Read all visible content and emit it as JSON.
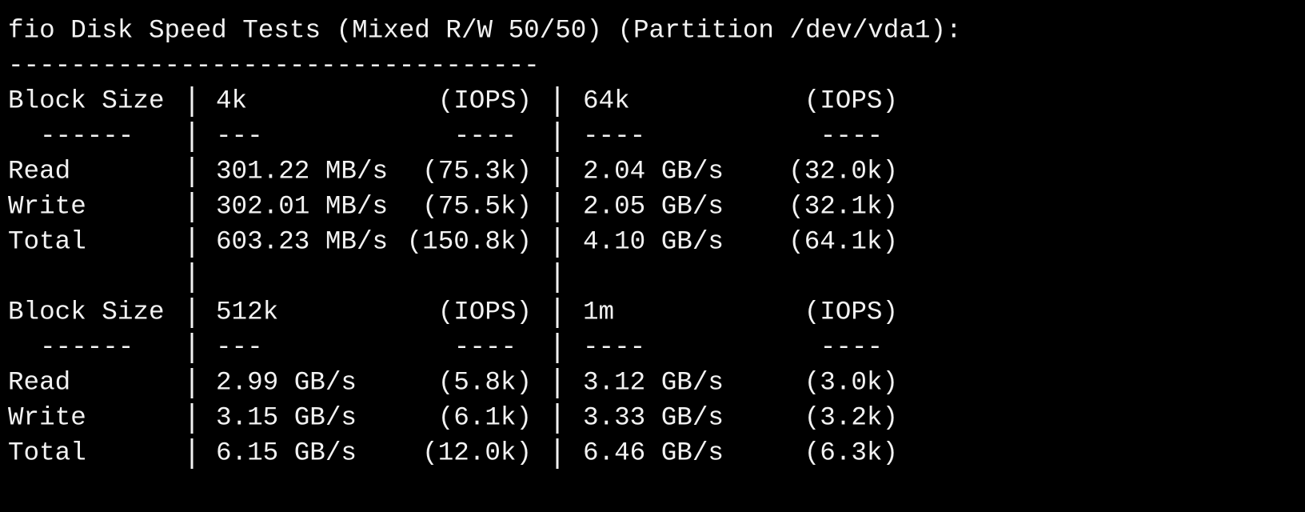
{
  "title": "fio Disk Speed Tests (Mixed R/W 50/50) (Partition /dev/vda1):",
  "rule": "----------------------------------",
  "tables": [
    {
      "header": [
        "Block Size",
        "4k",
        "(IOPS)",
        "64k",
        "(IOPS)"
      ],
      "separator": [
        "------",
        "---",
        "----",
        "----",
        "----"
      ],
      "rows": [
        [
          "Read",
          "301.22 MB/s",
          "(75.3k)",
          "2.04 GB/s",
          "(32.0k)"
        ],
        [
          "Write",
          "302.01 MB/s",
          "(75.5k)",
          "2.05 GB/s",
          "(32.1k)"
        ],
        [
          "Total",
          "603.23 MB/s",
          "(150.8k)",
          "4.10 GB/s",
          "(64.1k)"
        ]
      ]
    },
    {
      "header": [
        "Block Size",
        "512k",
        "(IOPS)",
        "1m",
        "(IOPS)"
      ],
      "separator": [
        "------",
        "---",
        "----",
        "----",
        "----"
      ],
      "rows": [
        [
          "Read",
          "2.99 GB/s",
          "(5.8k)",
          "3.12 GB/s",
          "(3.0k)"
        ],
        [
          "Write",
          "3.15 GB/s",
          "(6.1k)",
          "3.33 GB/s",
          "(3.2k)"
        ],
        [
          "Total",
          "6.15 GB/s",
          "(12.0k)",
          "6.46 GB/s",
          "(6.3k)"
        ]
      ]
    }
  ]
}
